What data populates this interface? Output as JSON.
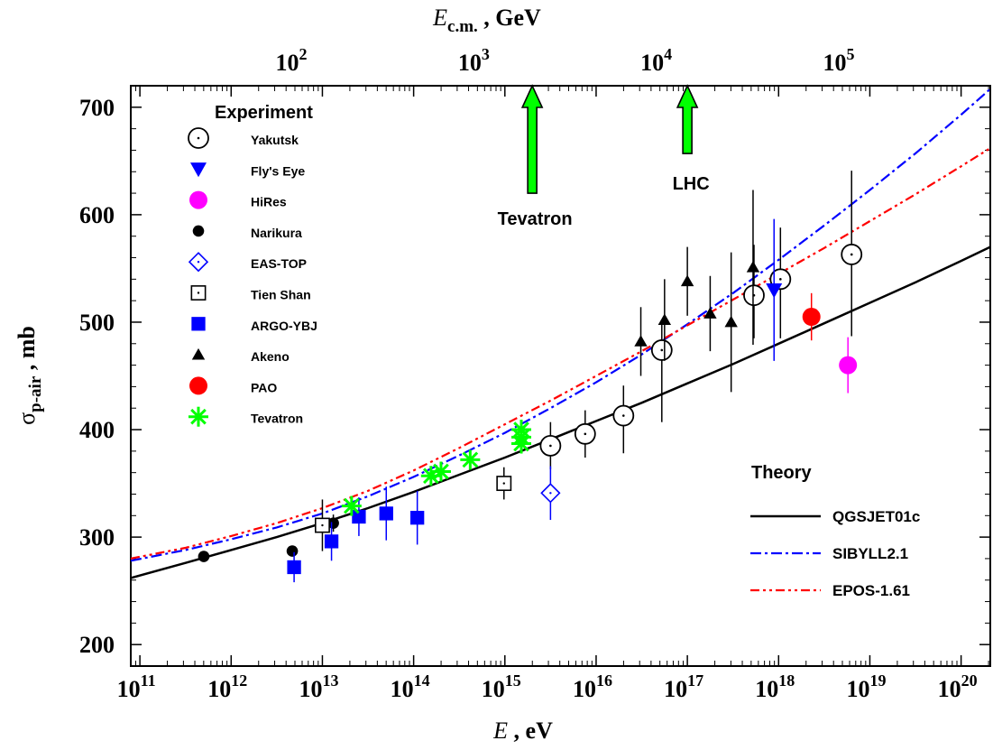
{
  "chart_data": {
    "type": "scatter",
    "x_axis": {
      "scale": "log10",
      "range": [
        10.9,
        20.32
      ],
      "label_var": "E",
      "label_sep": " ,",
      "label_unit": "eV",
      "ticks": [
        11,
        12,
        13,
        14,
        15,
        16,
        17,
        18,
        19,
        20
      ]
    },
    "top_axis": {
      "scale": "log10",
      "label_var": "E",
      "label_sub": "c.m.",
      "label_sep": " ,",
      "label_unit": "GeV",
      "ticks": [
        2,
        3,
        4,
        5
      ]
    },
    "y_axis": {
      "range": [
        180,
        720
      ],
      "label_var": "σ",
      "label_sub": "p-air",
      "label_sep": " ,",
      "label_unit": "mb",
      "ticks": [
        200,
        300,
        400,
        500,
        600,
        700
      ]
    },
    "legend_title": "Experiment",
    "theory_title": "Theory",
    "annotations": [
      {
        "text": "Tevatron",
        "log10_E": 15.3,
        "arrow_top": 720,
        "arrow_bottom": 620
      },
      {
        "text": "LHC",
        "log10_E": 17.0,
        "arrow_top": 720,
        "arrow_bottom": 657
      }
    ],
    "series": [
      {
        "name": "Yakutsk",
        "marker": "circle-dot",
        "color": "#000000",
        "points": [
          [
            15.5,
            385,
            22,
            22
          ],
          [
            15.88,
            396,
            22,
            22
          ],
          [
            16.3,
            413,
            28,
            35
          ],
          [
            16.72,
            474,
            25,
            67
          ],
          [
            17.73,
            525,
            47,
            40
          ],
          [
            18.02,
            540,
            48,
            55
          ],
          [
            18.8,
            563,
            78,
            76
          ]
        ]
      },
      {
        "name": "Fly's Eye",
        "marker": "triangle-down-filled",
        "color": "#0000ff",
        "points": [
          [
            17.95,
            530,
            66,
            66
          ]
        ]
      },
      {
        "name": "HiRes",
        "marker": "circle-filled",
        "color": "#ff00ff",
        "points": [
          [
            18.76,
            460,
            26,
            26
          ]
        ]
      },
      {
        "name": "Narikura",
        "marker": "dot-filled",
        "color": "#000000",
        "points": [
          [
            11.7,
            282,
            0,
            0
          ],
          [
            12.67,
            287,
            0,
            0
          ],
          [
            13.12,
            313,
            8,
            8
          ]
        ]
      },
      {
        "name": "EAS-TOP",
        "marker": "diamond-dot",
        "color": "#0000ff",
        "points": [
          [
            15.5,
            341,
            25,
            25
          ]
        ]
      },
      {
        "name": "Tien Shan",
        "marker": "square-dot",
        "color": "#000000",
        "points": [
          [
            13.0,
            311,
            24,
            24
          ],
          [
            14.99,
            350,
            15,
            15
          ]
        ]
      },
      {
        "name": "ARGO-YBJ",
        "marker": "square-filled",
        "color": "#0000ff",
        "points": [
          [
            12.69,
            272,
            14,
            14
          ],
          [
            13.1,
            296,
            18,
            18
          ],
          [
            13.4,
            319,
            18,
            18
          ],
          [
            13.7,
            322,
            25,
            25
          ],
          [
            14.04,
            318,
            25,
            25
          ]
        ]
      },
      {
        "name": "Akeno",
        "marker": "triangle-up-filled",
        "color": "#000000",
        "points": [
          [
            16.49,
            482,
            32,
            32
          ],
          [
            16.75,
            502,
            38,
            38
          ],
          [
            17.0,
            538,
            32,
            32
          ],
          [
            17.25,
            508,
            35,
            35
          ],
          [
            17.48,
            500,
            65,
            65
          ],
          [
            17.72,
            551,
            72,
            72
          ]
        ]
      },
      {
        "name": "PAO",
        "marker": "circle-filled",
        "color": "#ff0000",
        "points": [
          [
            18.36,
            505,
            22,
            22
          ]
        ]
      },
      {
        "name": "Tevatron",
        "marker": "asterisk",
        "color": "#00ff00",
        "points": [
          [
            13.32,
            329,
            0,
            0
          ],
          [
            14.19,
            357,
            0,
            0
          ],
          [
            14.3,
            361,
            0,
            0
          ],
          [
            14.62,
            372,
            0,
            0
          ],
          [
            15.18,
            387,
            0,
            0
          ],
          [
            15.18,
            393,
            0,
            0
          ],
          [
            15.18,
            400,
            0,
            0
          ]
        ]
      }
    ],
    "theory": [
      {
        "name": "QGSJET01c",
        "style": "solid",
        "color": "#000000",
        "x": [
          10.9,
          11.5,
          12,
          12.5,
          13,
          13.5,
          14,
          14.5,
          15,
          15.5,
          16,
          16.5,
          17,
          17.5,
          18,
          18.5,
          19,
          19.5,
          20,
          20.32
        ],
        "y": [
          262,
          276,
          288,
          300,
          313,
          327,
          342,
          358,
          374,
          391,
          408,
          425,
          443,
          461,
          480,
          499,
          518,
          537,
          557,
          570
        ]
      },
      {
        "name": "SIBYLL2.1",
        "style": "dashdot",
        "color": "#0000ff",
        "x": [
          10.9,
          11.5,
          12,
          12.5,
          13,
          13.5,
          14,
          14.5,
          15,
          15.5,
          16,
          16.5,
          17,
          17.5,
          18,
          18.5,
          19,
          19.5,
          20,
          20.32
        ],
        "y": [
          278,
          288,
          298,
          309,
          322,
          338,
          356,
          376,
          397,
          420,
          444,
          470,
          498,
          527,
          558,
          590,
          623,
          657,
          693,
          717
        ]
      },
      {
        "name": "EPOS-1.61",
        "style": "dashdot2",
        "color": "#ff0000",
        "x": [
          10.9,
          11.5,
          12,
          12.5,
          13,
          13.5,
          14,
          14.5,
          15,
          15.5,
          16,
          16.5,
          17,
          17.5,
          18,
          18.5,
          19,
          19.5,
          20,
          20.32
        ],
        "y": [
          280,
          290,
          301,
          313,
          327,
          343,
          362,
          383,
          405,
          427,
          450,
          473,
          497,
          521,
          545,
          569,
          594,
          619,
          645,
          662
        ]
      }
    ]
  }
}
